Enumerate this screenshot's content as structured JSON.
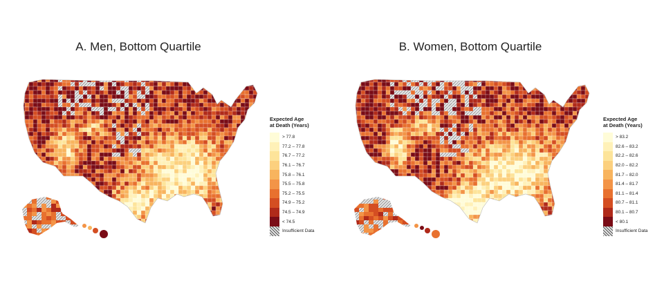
{
  "panels": [
    {
      "title": "A. Men, Bottom Quartile",
      "legend_title_line1": "Expected Age",
      "legend_title_line2": "at Death (Years)",
      "legend": [
        {
          "label": "> 77.8",
          "color": "#fffcd8"
        },
        {
          "label": "77.2 – 77.8",
          "color": "#fff1b8"
        },
        {
          "label": "76.7 – 77.2",
          "color": "#fde49a"
        },
        {
          "label": "76.1 – 76.7",
          "color": "#fcd07e"
        },
        {
          "label": "75.8 – 76.1",
          "color": "#f8b45e"
        },
        {
          "label": "75.5 – 75.8",
          "color": "#f39447"
        },
        {
          "label": "75.2 – 75.5",
          "color": "#e8712f"
        },
        {
          "label": "74.9 – 75.2",
          "color": "#d44e22"
        },
        {
          "label": "74.5 – 74.9",
          "color": "#b02a1a"
        },
        {
          "label": "< 74.5",
          "color": "#7a0c16"
        },
        {
          "label": "Insufficient Data",
          "color": "hatch"
        }
      ]
    },
    {
      "title": "B. Women, Bottom Quartile",
      "legend_title_line1": "Expected Age",
      "legend_title_line2": "at Death (Years)",
      "legend": [
        {
          "label": "> 83.2",
          "color": "#fffcd8"
        },
        {
          "label": "82.6 – 83.2",
          "color": "#fff1b8"
        },
        {
          "label": "82.2 – 82.6",
          "color": "#fde49a"
        },
        {
          "label": "82.0 – 82.2",
          "color": "#fcd07e"
        },
        {
          "label": "81.7 – 82.0",
          "color": "#f8b45e"
        },
        {
          "label": "81.4 – 81.7",
          "color": "#f39447"
        },
        {
          "label": "81.1 – 81.4",
          "color": "#e8712f"
        },
        {
          "label": "80.7 – 81.1",
          "color": "#d44e22"
        },
        {
          "label": "80.1 – 80.7",
          "color": "#b02a1a"
        },
        {
          "label": "< 80.1",
          "color": "#7a0c16"
        },
        {
          "label": "Insufficient Data",
          "color": "hatch"
        }
      ]
    }
  ]
}
